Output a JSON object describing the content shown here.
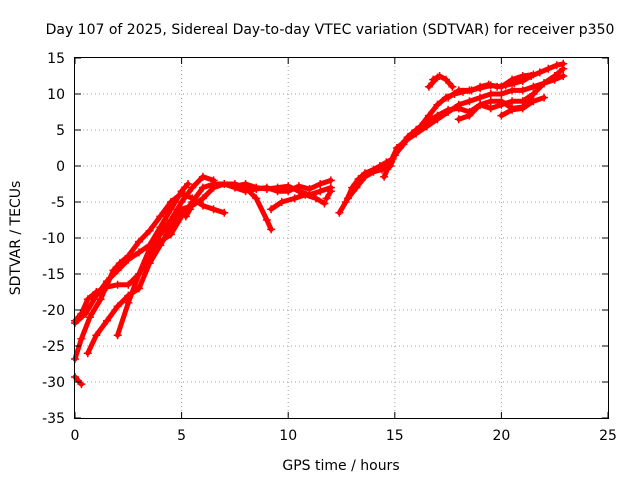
{
  "chart_data": {
    "type": "scatter",
    "title": "Day 107 of 2025, Sidereal Day-to-day VTEC variation (SDTVAR) for receiver p350",
    "xlabel": "GPS time / hours",
    "ylabel": "SDTVAR / TECUs",
    "xlim": [
      0,
      25
    ],
    "ylim": [
      -35,
      15
    ],
    "xticks": [
      "0",
      "5",
      "10",
      "15",
      "20",
      "25"
    ],
    "yticks": [
      "15",
      "10",
      "5",
      "0",
      "-5",
      "-10",
      "-15",
      "-20",
      "-25",
      "-30",
      "-35"
    ],
    "grid": true,
    "marker": "+",
    "color": "#ff0000",
    "series": [
      {
        "points": [
          [
            0.0,
            -29.3
          ],
          [
            0.3,
            -30.3
          ]
        ]
      },
      {
        "points": [
          [
            0.0,
            -21.8
          ],
          [
            0.5,
            -20.5
          ],
          [
            1.0,
            -18.0
          ],
          [
            1.5,
            -16.0
          ],
          [
            2.0,
            -14.5
          ],
          [
            2.5,
            -13.0
          ],
          [
            3.0,
            -12.0
          ],
          [
            3.5,
            -11.0
          ],
          [
            4.0,
            -8.5
          ],
          [
            4.5,
            -6.0
          ],
          [
            5.0,
            -3.5
          ],
          [
            5.3,
            -2.5
          ]
        ]
      },
      {
        "points": [
          [
            0.0,
            -21.5
          ],
          [
            0.3,
            -20.5
          ],
          [
            0.6,
            -18.5
          ],
          [
            1.0,
            -17.5
          ],
          [
            1.5,
            -16.8
          ],
          [
            2.0,
            -16.5
          ],
          [
            2.5,
            -16.5
          ],
          [
            3.0,
            -15.0
          ],
          [
            3.5,
            -11.5
          ],
          [
            4.0,
            -9.5
          ],
          [
            4.5,
            -7.5
          ],
          [
            5.0,
            -5.0
          ],
          [
            5.5,
            -3.0
          ],
          [
            6.0,
            -1.5
          ],
          [
            6.5,
            -2.0
          ]
        ]
      },
      {
        "points": [
          [
            0.0,
            -26.8
          ],
          [
            0.3,
            -24.0
          ],
          [
            0.7,
            -21.0
          ],
          [
            1.2,
            -18.5
          ],
          [
            1.5,
            -16.5
          ],
          [
            1.8,
            -14.5
          ],
          [
            2.1,
            -13.5
          ],
          [
            2.5,
            -12.5
          ],
          [
            3.0,
            -10.5
          ],
          [
            3.5,
            -9.0
          ],
          [
            4.0,
            -7.0
          ],
          [
            4.5,
            -5.0
          ],
          [
            5.0,
            -3.8
          ],
          [
            5.5,
            -4.5
          ],
          [
            6.0,
            -5.5
          ],
          [
            6.5,
            -6.0
          ],
          [
            7.0,
            -6.5
          ]
        ]
      },
      {
        "points": [
          [
            0.6,
            -26.0
          ],
          [
            1.0,
            -23.5
          ],
          [
            1.5,
            -21.5
          ],
          [
            2.0,
            -19.5
          ],
          [
            2.5,
            -18.0
          ],
          [
            3.0,
            -17.0
          ],
          [
            3.5,
            -13.5
          ],
          [
            4.0,
            -11.0
          ],
          [
            4.5,
            -8.5
          ],
          [
            5.0,
            -6.0
          ],
          [
            5.5,
            -5.5
          ],
          [
            6.0,
            -4.5
          ],
          [
            6.5,
            -3.0
          ],
          [
            7.0,
            -2.5
          ],
          [
            7.5,
            -2.5
          ],
          [
            8.0,
            -3.0
          ],
          [
            8.5,
            -4.5
          ],
          [
            9.0,
            -7.5
          ],
          [
            9.2,
            -8.8
          ]
        ]
      },
      {
        "points": [
          [
            2.0,
            -23.5
          ],
          [
            2.5,
            -19.0
          ],
          [
            3.0,
            -15.0
          ],
          [
            3.5,
            -12.5
          ],
          [
            4.0,
            -10.5
          ],
          [
            4.5,
            -9.5
          ],
          [
            5.0,
            -7.0
          ],
          [
            5.5,
            -5.0
          ],
          [
            6.0,
            -3.0
          ],
          [
            6.5,
            -2.5
          ],
          [
            7.0,
            -2.5
          ],
          [
            7.5,
            -3.0
          ],
          [
            8.0,
            -3.5
          ],
          [
            8.5,
            -3.2
          ],
          [
            9.0,
            -3.0
          ],
          [
            9.5,
            -3.5
          ],
          [
            10.0,
            -3.5
          ],
          [
            10.5,
            -2.8
          ],
          [
            11.0,
            -3.2
          ],
          [
            11.5,
            -2.5
          ],
          [
            12.0,
            -2.0
          ]
        ]
      },
      {
        "points": [
          [
            5.2,
            -7.0
          ],
          [
            5.4,
            -6.0
          ]
        ]
      },
      {
        "points": [
          [
            7.0,
            -2.5
          ],
          [
            7.5,
            -2.8
          ],
          [
            8.0,
            -2.5
          ],
          [
            8.5,
            -3.0
          ],
          [
            9.0,
            -3.2
          ],
          [
            9.5,
            -3.0
          ],
          [
            10.0,
            -2.8
          ],
          [
            10.5,
            -3.5
          ],
          [
            11.0,
            -4.0
          ],
          [
            11.5,
            -3.5
          ],
          [
            12.0,
            -3.0
          ]
        ]
      },
      {
        "points": [
          [
            9.2,
            -6.0
          ],
          [
            9.7,
            -5.0
          ],
          [
            10.3,
            -4.5
          ],
          [
            10.8,
            -4.0
          ],
          [
            11.3,
            -4.5
          ],
          [
            11.7,
            -5.2
          ]
        ]
      },
      {
        "points": [
          [
            11.8,
            -4.5
          ],
          [
            12.0,
            -3.5
          ]
        ]
      },
      {
        "points": [
          [
            12.4,
            -6.5
          ],
          [
            12.7,
            -5.0
          ],
          [
            13.0,
            -3.0
          ],
          [
            13.3,
            -1.8
          ],
          [
            13.6,
            -1.0
          ],
          [
            14.0,
            -0.5
          ],
          [
            14.3,
            0.0
          ],
          [
            14.6,
            0.5
          ],
          [
            14.9,
            1.0
          ],
          [
            15.2,
            2.5
          ],
          [
            15.6,
            4.0
          ],
          [
            16.0,
            5.0
          ],
          [
            16.5,
            6.0
          ],
          [
            17.0,
            7.0
          ],
          [
            17.5,
            7.8
          ],
          [
            18.0,
            8.0
          ],
          [
            18.5,
            7.5
          ],
          [
            19.0,
            8.5
          ],
          [
            19.5,
            9.0
          ],
          [
            20.0,
            9.0
          ],
          [
            20.5,
            8.0
          ],
          [
            21.0,
            8.2
          ],
          [
            21.5,
            10.0
          ],
          [
            22.0,
            11.5
          ],
          [
            22.5,
            12.5
          ],
          [
            22.9,
            13.5
          ]
        ]
      },
      {
        "points": [
          [
            12.8,
            -4.5
          ],
          [
            13.2,
            -3.0
          ],
          [
            13.6,
            -1.5
          ],
          [
            14.0,
            -0.8
          ],
          [
            14.4,
            -0.5
          ],
          [
            14.8,
            0.0
          ],
          [
            15.0,
            1.5
          ],
          [
            15.4,
            3.0
          ],
          [
            15.8,
            4.5
          ],
          [
            16.2,
            5.5
          ],
          [
            16.6,
            7.0
          ],
          [
            17.0,
            8.5
          ],
          [
            17.4,
            9.5
          ],
          [
            17.8,
            10.0
          ],
          [
            18.2,
            10.3
          ],
          [
            18.6,
            10.5
          ],
          [
            19.0,
            11.0
          ],
          [
            19.4,
            11.3
          ],
          [
            19.8,
            11.0
          ],
          [
            20.2,
            11.2
          ],
          [
            20.6,
            11.5
          ],
          [
            21.0,
            11.8
          ],
          [
            21.4,
            12.5
          ],
          [
            21.8,
            13.0
          ],
          [
            22.2,
            13.5
          ],
          [
            22.6,
            14.0
          ],
          [
            22.9,
            14.2
          ]
        ]
      },
      {
        "points": [
          [
            14.5,
            -1.5
          ],
          [
            14.8,
            0.5
          ],
          [
            15.1,
            2.5
          ],
          [
            15.5,
            3.5
          ],
          [
            16.0,
            4.5
          ],
          [
            16.5,
            5.5
          ],
          [
            17.0,
            6.5
          ],
          [
            17.5,
            7.5
          ],
          [
            18.0,
            8.5
          ],
          [
            18.5,
            9.0
          ],
          [
            19.0,
            9.5
          ],
          [
            19.5,
            10.0
          ],
          [
            20.0,
            10.0
          ],
          [
            20.5,
            10.5
          ],
          [
            21.0,
            10.5
          ],
          [
            21.5,
            11.0
          ],
          [
            22.0,
            11.5
          ],
          [
            22.5,
            12.0
          ],
          [
            22.9,
            12.5
          ]
        ]
      },
      {
        "points": [
          [
            16.8,
            12.0
          ],
          [
            17.1,
            12.5
          ],
          [
            17.4,
            12.0
          ],
          [
            17.7,
            11.0
          ]
        ]
      },
      {
        "points": [
          [
            16.6,
            11.0
          ],
          [
            17.0,
            12.3
          ]
        ]
      },
      {
        "points": [
          [
            17.5,
            9.5
          ],
          [
            18.0,
            10.5
          ],
          [
            18.5,
            10.5
          ],
          [
            19.0,
            10.8
          ],
          [
            19.5,
            11.2
          ],
          [
            20.0,
            11.0
          ],
          [
            20.5,
            12.0
          ],
          [
            21.0,
            12.5
          ],
          [
            21.5,
            12.7
          ]
        ]
      },
      {
        "points": [
          [
            18.0,
            6.5
          ],
          [
            18.5,
            7.0
          ],
          [
            19.0,
            8.5
          ],
          [
            19.5,
            8.0
          ],
          [
            20.0,
            8.5
          ],
          [
            20.5,
            9.0
          ],
          [
            21.0,
            9.0
          ],
          [
            21.5,
            10.0
          ]
        ]
      },
      {
        "points": [
          [
            20.0,
            7.0
          ],
          [
            20.5,
            7.8
          ],
          [
            21.0,
            8.0
          ],
          [
            21.5,
            9.0
          ],
          [
            22.0,
            9.5
          ]
        ]
      }
    ]
  }
}
